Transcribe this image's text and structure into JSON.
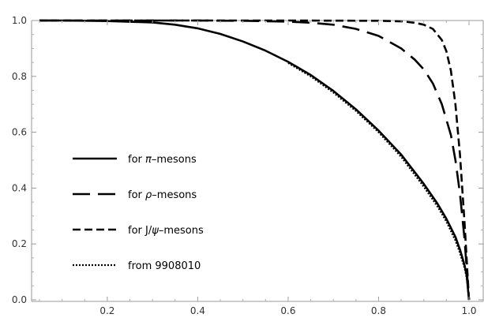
{
  "chart_data": {
    "type": "line",
    "xlim": [
      0.05,
      1.0
    ],
    "ylim": [
      0.0,
      1.0
    ],
    "grid": false,
    "legend_position": "left-middle",
    "x_ticks": [
      {
        "value": 0.2,
        "label": "0.2"
      },
      {
        "value": 0.4,
        "label": "0.4"
      },
      {
        "value": 0.6,
        "label": "0.6"
      },
      {
        "value": 0.8,
        "label": "0.8"
      },
      {
        "value": 1.0,
        "label": "1.0"
      }
    ],
    "y_ticks": [
      {
        "value": 0.0,
        "label": "0.0"
      },
      {
        "value": 0.2,
        "label": "0.2"
      },
      {
        "value": 0.4,
        "label": "0.4"
      },
      {
        "value": 0.6,
        "label": "0.6"
      },
      {
        "value": 0.8,
        "label": "0.8"
      },
      {
        "value": 1.0,
        "label": "1.0"
      }
    ],
    "legend": [
      {
        "prefix": "for ",
        "symbol": "π",
        "suffix": "–mesons",
        "style": "solid"
      },
      {
        "prefix": "for ",
        "symbol": "ρ",
        "suffix": "–mesons",
        "style": "longdash"
      },
      {
        "prefix": "for J/",
        "symbol": "ψ",
        "suffix": "–mesons",
        "style": "dash"
      },
      {
        "prefix": "from 9908010",
        "symbol": "",
        "suffix": "",
        "style": "dotted"
      }
    ],
    "series": [
      {
        "style": "solid",
        "color": "#000000",
        "x": [
          0.05,
          0.1,
          0.2,
          0.3,
          0.35,
          0.4,
          0.45,
          0.5,
          0.55,
          0.6,
          0.65,
          0.7,
          0.75,
          0.8,
          0.85,
          0.9,
          0.93,
          0.95,
          0.97,
          0.98,
          0.99,
          0.995,
          1.0
        ],
        "y": [
          1.0,
          1.0,
          0.998,
          0.993,
          0.985,
          0.972,
          0.952,
          0.925,
          0.892,
          0.852,
          0.805,
          0.748,
          0.682,
          0.606,
          0.52,
          0.415,
          0.345,
          0.29,
          0.225,
          0.18,
          0.125,
          0.085,
          0.0
        ]
      },
      {
        "style": "longdash",
        "color": "#000000",
        "x": [
          0.05,
          0.2,
          0.4,
          0.5,
          0.6,
          0.65,
          0.7,
          0.75,
          0.8,
          0.85,
          0.88,
          0.9,
          0.92,
          0.94,
          0.96,
          0.97,
          0.98,
          0.99,
          1.0
        ],
        "y": [
          1.0,
          1.0,
          1.0,
          0.999,
          0.996,
          0.992,
          0.985,
          0.97,
          0.945,
          0.9,
          0.86,
          0.825,
          0.775,
          0.7,
          0.59,
          0.5,
          0.38,
          0.22,
          0.0
        ]
      },
      {
        "style": "dash",
        "color": "#000000",
        "x": [
          0.05,
          0.4,
          0.6,
          0.8,
          0.85,
          0.88,
          0.9,
          0.92,
          0.94,
          0.95,
          0.96,
          0.97,
          0.98,
          0.99,
          1.0
        ],
        "y": [
          1.0,
          1.0,
          1.0,
          0.999,
          0.997,
          0.992,
          0.985,
          0.97,
          0.93,
          0.89,
          0.82,
          0.7,
          0.52,
          0.28,
          0.0
        ]
      },
      {
        "style": "dotted",
        "color": "#000000",
        "x": [
          0.6,
          0.65,
          0.7,
          0.75,
          0.8,
          0.85,
          0.9,
          0.93,
          0.95,
          0.97,
          0.98,
          0.99,
          0.995,
          1.0
        ],
        "y": [
          0.848,
          0.8,
          0.742,
          0.676,
          0.6,
          0.512,
          0.405,
          0.335,
          0.28,
          0.212,
          0.168,
          0.115,
          0.078,
          0.0
        ]
      }
    ]
  }
}
